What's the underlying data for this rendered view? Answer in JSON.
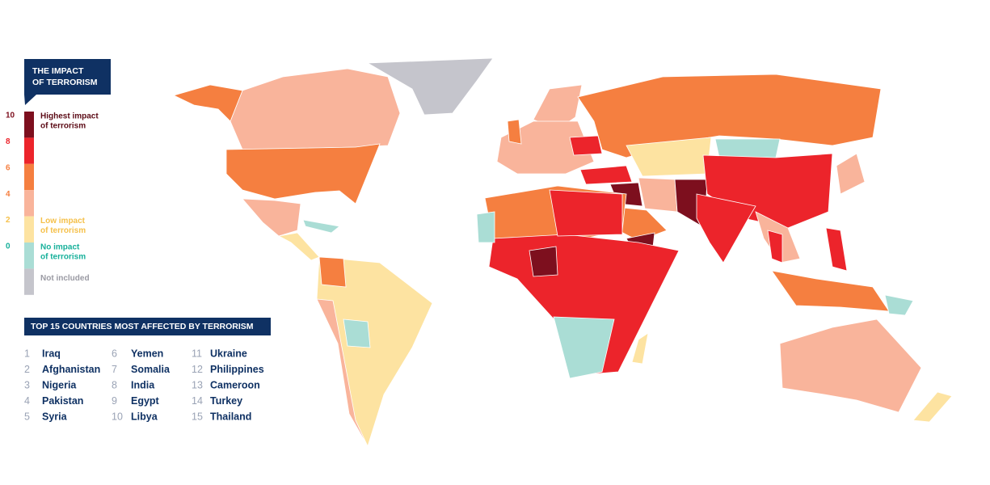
{
  "legend": {
    "title_lines": [
      "THE IMPACT",
      "OF TERRORISM"
    ],
    "scale_labels": [
      10,
      8,
      6,
      4,
      2,
      0
    ],
    "bands": [
      {
        "color": "#7d0f1e",
        "lines": [
          "Highest impact",
          "of terrorism"
        ]
      },
      {
        "color": "#ec242b",
        "lines": []
      },
      {
        "color": "#f57f40",
        "lines": []
      },
      {
        "color": "#f9b49b",
        "lines": []
      },
      {
        "color": "#fde3a1",
        "lines": [
          "Low impact",
          "of terrorism"
        ]
      },
      {
        "color": "#aaddd5",
        "lines": [
          "No impact",
          "of terrorism"
        ]
      },
      {
        "color": "#c5c5cc",
        "lines": [
          "Not included"
        ]
      }
    ]
  },
  "top15": {
    "title": "TOP 15 COUNTRIES MOST AFFECTED BY TERRORISM",
    "items": [
      {
        "rank": 1,
        "country": "Iraq"
      },
      {
        "rank": 2,
        "country": "Afghanistan"
      },
      {
        "rank": 3,
        "country": "Nigeria"
      },
      {
        "rank": 4,
        "country": "Pakistan"
      },
      {
        "rank": 5,
        "country": "Syria"
      },
      {
        "rank": 6,
        "country": "Yemen"
      },
      {
        "rank": 7,
        "country": "Somalia"
      },
      {
        "rank": 8,
        "country": "India"
      },
      {
        "rank": 9,
        "country": "Egypt"
      },
      {
        "rank": 10,
        "country": "Libya"
      },
      {
        "rank": 11,
        "country": "Ukraine"
      },
      {
        "rank": 12,
        "country": "Philippines"
      },
      {
        "rank": 13,
        "country": "Cameroon"
      },
      {
        "rank": 14,
        "country": "Turkey"
      },
      {
        "rank": 15,
        "country": "Thailand"
      }
    ]
  }
}
